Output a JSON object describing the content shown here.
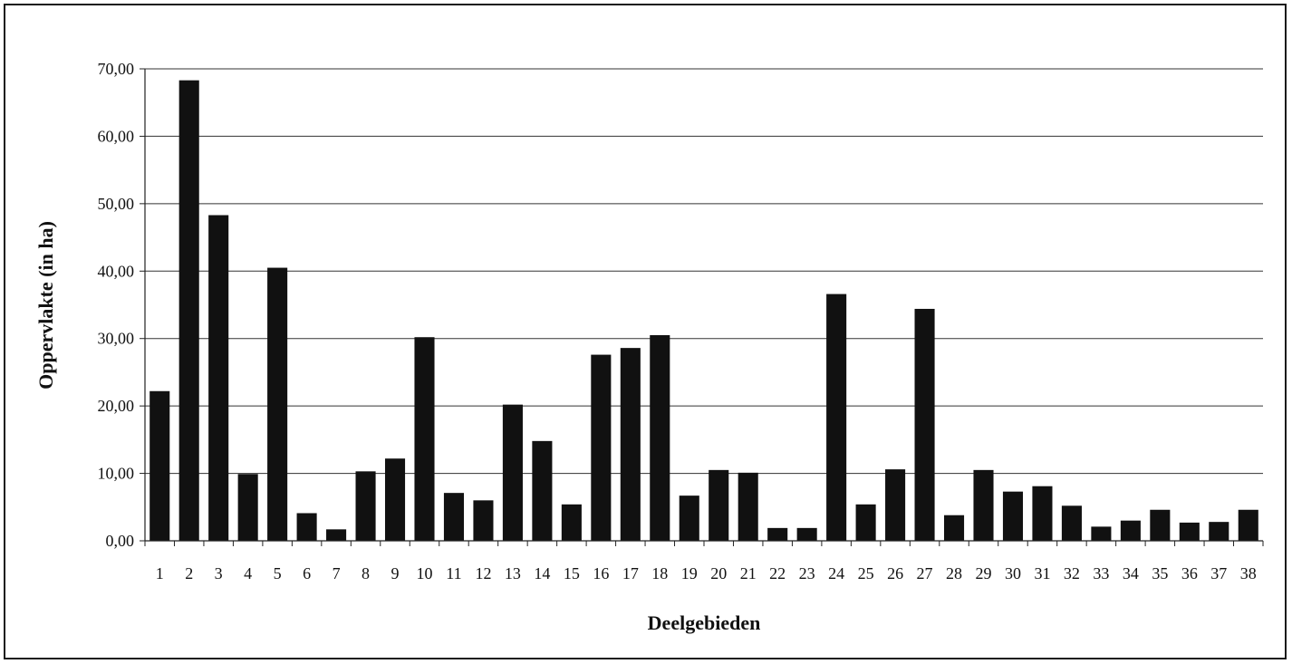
{
  "chart_data": {
    "type": "bar",
    "xlabel": "Deelgebieden",
    "ylabel": "Oppervlakte (in ha)",
    "ylim": [
      0,
      70
    ],
    "y_ticks": [
      "0,00",
      "10,00",
      "20,00",
      "30,00",
      "40,00",
      "50,00",
      "60,00",
      "70,00"
    ],
    "grid": "horizontal",
    "categories": [
      "1",
      "2",
      "3",
      "4",
      "5",
      "6",
      "7",
      "8",
      "9",
      "10",
      "11",
      "12",
      "13",
      "14",
      "15",
      "16",
      "17",
      "18",
      "19",
      "20",
      "21",
      "22",
      "23",
      "24",
      "25",
      "26",
      "27",
      "28",
      "29",
      "30",
      "31",
      "32",
      "33",
      "34",
      "35",
      "36",
      "37",
      "38"
    ],
    "values": [
      22.2,
      68.3,
      48.3,
      9.9,
      40.5,
      4.1,
      1.7,
      10.3,
      12.2,
      30.2,
      7.1,
      6.0,
      20.2,
      14.8,
      5.4,
      27.6,
      28.6,
      30.5,
      6.7,
      10.5,
      10.1,
      1.9,
      1.9,
      36.6,
      5.4,
      10.6,
      34.4,
      3.8,
      10.5,
      7.3,
      8.1,
      5.2,
      2.1,
      3.0,
      4.6,
      2.7,
      2.8,
      4.6
    ],
    "bar_color": "#111111",
    "grid_color": "#333333"
  }
}
